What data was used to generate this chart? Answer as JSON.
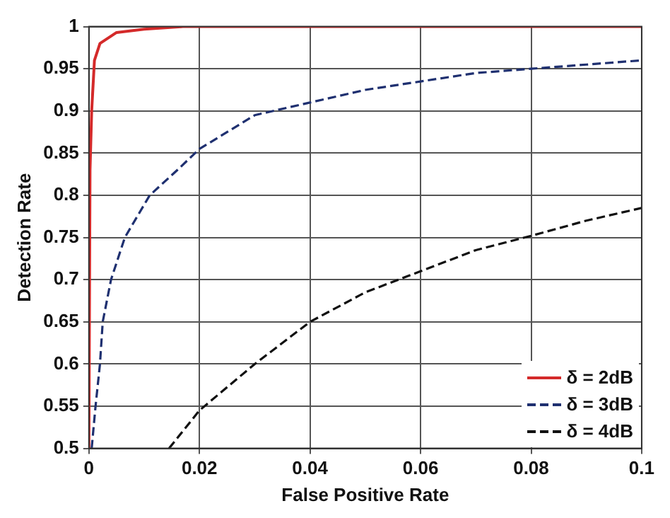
{
  "chart_data": {
    "type": "line",
    "xlabel": "False Positive Rate",
    "ylabel": "Detection Rate",
    "xlim": [
      0,
      0.1
    ],
    "xticks": [
      0,
      0.02,
      0.04,
      0.06,
      0.08,
      0.1
    ],
    "ylim": [
      0.5,
      1
    ],
    "yticks": [
      0.5,
      0.55,
      0.6,
      0.65,
      0.7,
      0.75,
      0.8,
      0.85,
      0.9,
      0.95,
      1
    ],
    "grid": true,
    "legend": "bottom right",
    "marker": "none",
    "series": [
      {
        "name": "δ = 2dB",
        "color": "#d42a2a",
        "line_style": "solid",
        "x": [
          0,
          0.0002,
          0.0005,
          0.001,
          0.002,
          0.005,
          0.01,
          0.017,
          0.1
        ],
        "values": [
          0.5,
          0.83,
          0.9,
          0.96,
          0.98,
          0.993,
          0.997,
          1,
          1
        ]
      },
      {
        "name": "δ = 3dB",
        "color": "#1f3070",
        "line_style": "dashed",
        "x": [
          0.0005,
          0.0012,
          0.002,
          0.0025,
          0.004,
          0.0065,
          0.011,
          0.016,
          0.02,
          0.03,
          0.04,
          0.05,
          0.06,
          0.07,
          0.08,
          0.09,
          0.1
        ],
        "values": [
          0.5,
          0.55,
          0.6,
          0.65,
          0.7,
          0.75,
          0.8,
          0.83,
          0.855,
          0.895,
          0.91,
          0.925,
          0.935,
          0.945,
          0.95,
          0.955,
          0.96
        ]
      },
      {
        "name": "δ = 4dB",
        "color": "#111111",
        "line_style": "dashed",
        "x": [
          0.0145,
          0.02,
          0.03,
          0.04,
          0.05,
          0.06,
          0.07,
          0.08,
          0.09,
          0.1
        ],
        "values": [
          0.5,
          0.545,
          0.6,
          0.65,
          0.685,
          0.71,
          0.735,
          0.752,
          0.77,
          0.785
        ]
      }
    ]
  }
}
